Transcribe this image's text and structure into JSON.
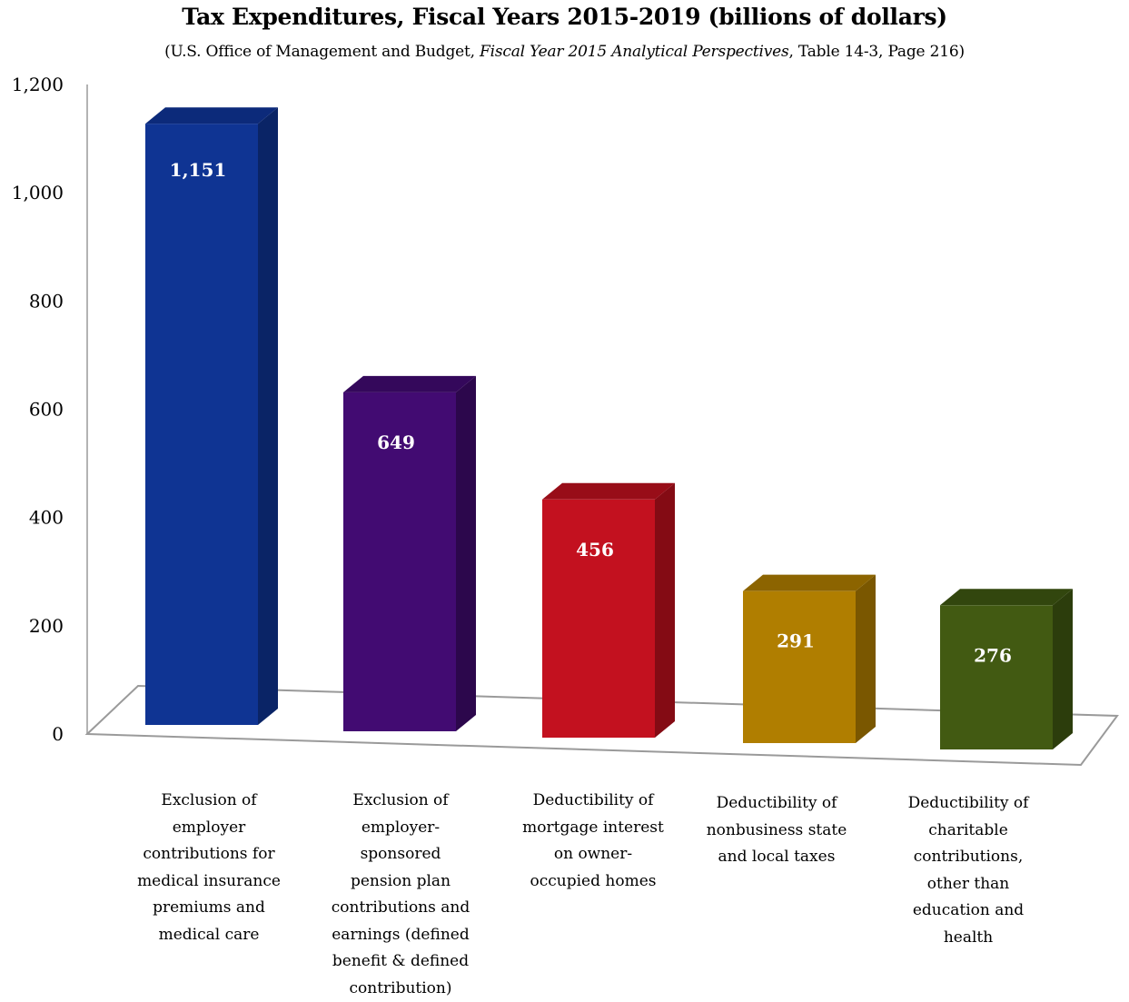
{
  "chart_data": {
    "type": "bar",
    "title": "Tax Expenditures, Fiscal Years 2015-2019 (billions of dollars)",
    "subtitle": {
      "prefix": "(U.S. Office of Management and Budget, ",
      "italic": "Fiscal Year 2015 Analytical Perspectives",
      "suffix": ", Table 14-3, Page 216)"
    },
    "categories": [
      "Exclusion of employer contributions for medical insurance premiums and medical care",
      "Exclusion of employer-sponsored pension plan contributions and earnings (defined benefit & defined contribution)",
      "Deductibility of mortgage interest on owner-occupied homes",
      "Deductibility of nonbusiness state and local taxes",
      "Deductibility of charitable contributions, other than education and health"
    ],
    "category_lines": [
      [
        "Exclusion of",
        "employer",
        "contributions for",
        "medical insurance",
        "premiums and",
        "medical care"
      ],
      [
        "Exclusion of",
        "employer-",
        "sponsored",
        "pension plan",
        "contributions and",
        "earnings (defined",
        "benefit & defined",
        "contribution)"
      ],
      [
        "Deductibility of",
        "mortgage interest",
        "on owner-",
        "occupied homes"
      ],
      [
        "Deductibility of",
        "nonbusiness state",
        "and local taxes"
      ],
      [
        "Deductibility of",
        "charitable",
        "contributions,",
        "other than",
        "education and",
        "health"
      ]
    ],
    "values": [
      1151,
      649,
      456,
      291,
      276
    ],
    "value_labels": [
      "1,151",
      "649",
      "456",
      "291",
      "276"
    ],
    "y_ticks": [
      0,
      200,
      400,
      600,
      800,
      1000,
      1200
    ],
    "y_tick_labels": [
      "0",
      "200",
      "400",
      "600",
      "800",
      "1,000",
      "1,200"
    ],
    "ylim": [
      0,
      1200
    ],
    "grid": false,
    "legend": "none",
    "bar_colors": [
      {
        "front": "#0F3493",
        "side": "#0A2466",
        "top": "#0C2A7A"
      },
      {
        "front": "#420B72",
        "side": "#2C074C",
        "top": "#34085B"
      },
      {
        "front": "#C3111F",
        "side": "#840B14",
        "top": "#980D18"
      },
      {
        "front": "#B07E00",
        "side": "#7A5700",
        "top": "#8C6400"
      },
      {
        "front": "#425A12",
        "side": "#2C3D0C",
        "top": "#32460E"
      }
    ]
  }
}
